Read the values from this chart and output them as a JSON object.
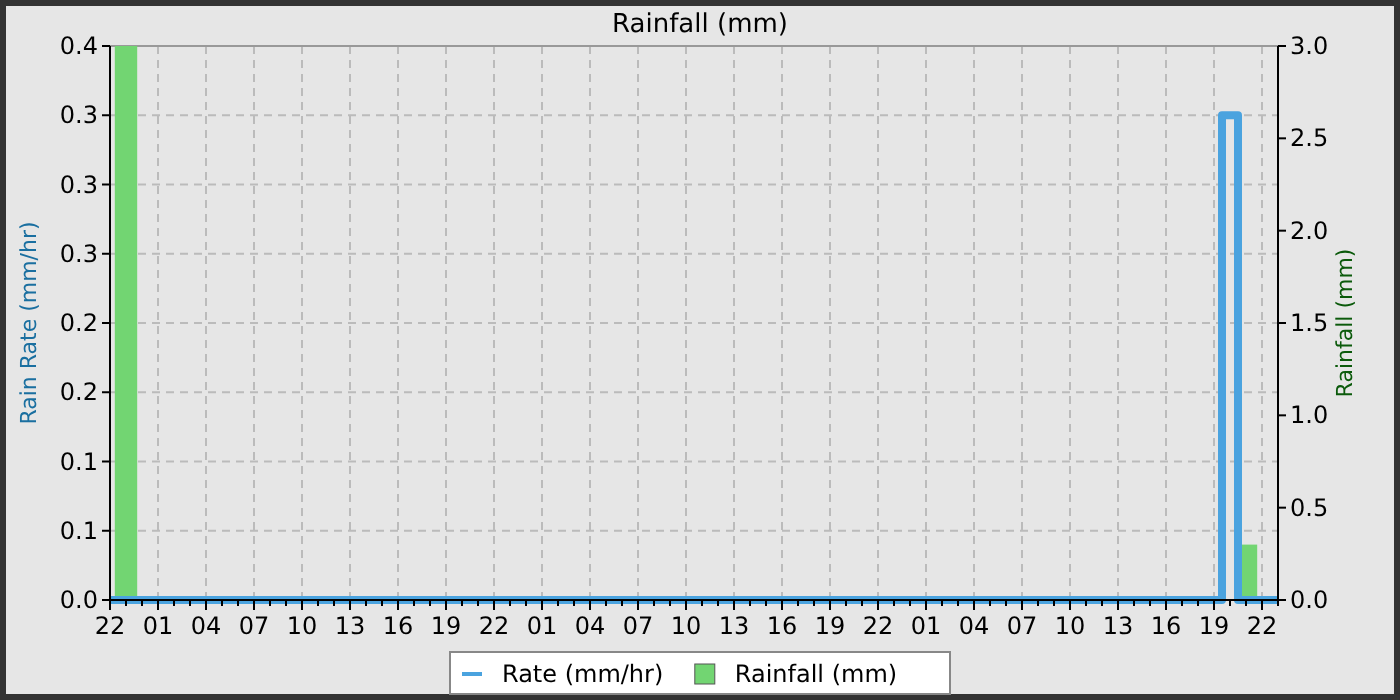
{
  "chart_data": {
    "type": "bar",
    "title": "Rainfall (mm)",
    "ylabel": "Rain Rate (mm/hr)",
    "y2label": "Rainfall (mm)",
    "categories": [
      "22",
      null,
      null,
      "01",
      null,
      null,
      "04",
      null,
      null,
      "07",
      null,
      null,
      "10",
      null,
      null,
      "13",
      null,
      null,
      "16",
      null,
      null,
      "19",
      null,
      null,
      "22",
      null,
      null,
      "01",
      null,
      null,
      "04",
      null,
      null,
      "07",
      null,
      null,
      "10",
      null,
      null,
      "13",
      null,
      null,
      "16",
      null,
      null,
      "19",
      null,
      null,
      "22",
      null,
      null,
      "01",
      null,
      null,
      "04",
      null,
      null,
      "07",
      null,
      null,
      "10",
      null,
      null,
      "13",
      null,
      null,
      "16",
      null,
      null,
      "19",
      null,
      null,
      "22",
      null
    ],
    "ylim": [
      0,
      0.4
    ],
    "yticks": [
      {
        "value": 0,
        "label": "0.0"
      },
      {
        "value": 0.05,
        "label": "0.1"
      },
      {
        "value": 0.1,
        "label": "0.1"
      },
      {
        "value": 0.15,
        "label": "0.2"
      },
      {
        "value": 0.2,
        "label": "0.2"
      },
      {
        "value": 0.25,
        "label": "0.3"
      },
      {
        "value": 0.3,
        "label": "0.3"
      },
      {
        "value": 0.35,
        "label": "0.3"
      },
      {
        "value": 0.4,
        "label": "0.4"
      }
    ],
    "y2lim": [
      0,
      3.0
    ],
    "y2ticks": [
      {
        "value": 0,
        "label": "0.0"
      },
      {
        "value": 0.5,
        "label": "0.5"
      },
      {
        "value": 1,
        "label": "1.0"
      },
      {
        "value": 1.5,
        "label": "1.5"
      },
      {
        "value": 2,
        "label": "2.0"
      },
      {
        "value": 2.5,
        "label": "2.5"
      },
      {
        "value": 3,
        "label": "3.0"
      }
    ],
    "grid": true,
    "legend": "bottom",
    "series": [
      {
        "name": "Rate (mm/hr)",
        "type": "step",
        "color": "#4aa3df",
        "values": [
          0,
          0,
          0,
          0,
          0,
          0,
          0,
          0,
          0,
          0,
          0,
          0,
          0,
          0,
          0,
          0,
          0,
          0,
          0,
          0,
          0,
          0,
          0,
          0,
          0,
          0,
          0,
          0,
          0,
          0,
          0,
          0,
          0,
          0,
          0,
          0,
          0,
          0,
          0,
          0,
          0,
          0,
          0,
          0,
          0,
          0,
          0,
          0,
          0,
          0,
          0,
          0,
          0,
          0,
          0,
          0,
          0,
          0,
          0,
          0,
          0,
          0,
          0,
          0,
          0,
          0,
          0,
          0,
          0,
          0,
          0.35,
          0,
          0,
          0
        ]
      },
      {
        "name": "Rainfall (mm)",
        "axis": "y2",
        "color": "#72d572",
        "values": [
          0,
          3.0,
          0,
          0,
          0,
          0,
          0,
          0,
          0,
          0,
          0,
          0,
          0,
          0,
          0,
          0,
          0,
          0,
          0,
          0,
          0,
          0,
          0,
          0,
          0,
          0,
          0,
          0,
          0,
          0,
          0,
          0,
          0,
          0,
          0,
          0,
          0,
          0,
          0,
          0,
          0,
          0,
          0,
          0,
          0,
          0,
          0,
          0,
          0,
          0,
          0,
          0,
          0,
          0,
          0,
          0,
          0,
          0,
          0,
          0,
          0,
          0,
          0,
          0,
          0,
          0,
          0,
          0,
          0,
          0,
          0,
          0.3,
          0,
          0
        ]
      }
    ]
  }
}
